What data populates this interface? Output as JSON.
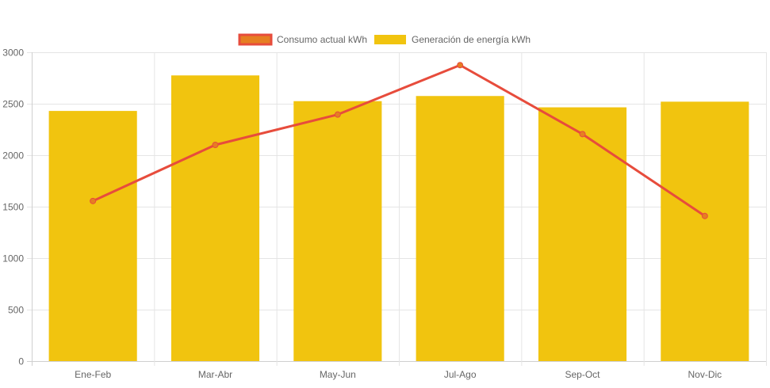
{
  "chart_data": {
    "type": "bar",
    "categories": [
      "Ene-Feb",
      "Mar-Abr",
      "May-Jun",
      "Jul-Ago",
      "Sep-Oct",
      "Nov-Dic"
    ],
    "series": [
      {
        "name": "Consumo actual kWh",
        "type": "line",
        "values": [
          1555,
          2100,
          2395,
          2875,
          2205,
          1410
        ],
        "color": "#e74c3c",
        "legend_fill": "#e67e22"
      },
      {
        "name": "Generación de energía kWh",
        "type": "bar",
        "values": [
          2430,
          2775,
          2525,
          2575,
          2465,
          2520
        ],
        "color": "#f1c40f"
      }
    ],
    "y_ticks": [
      0,
      500,
      1000,
      1500,
      2000,
      2500,
      3000
    ],
    "ylim": [
      0,
      3000
    ],
    "grid": true,
    "legend_position": "top-center"
  }
}
